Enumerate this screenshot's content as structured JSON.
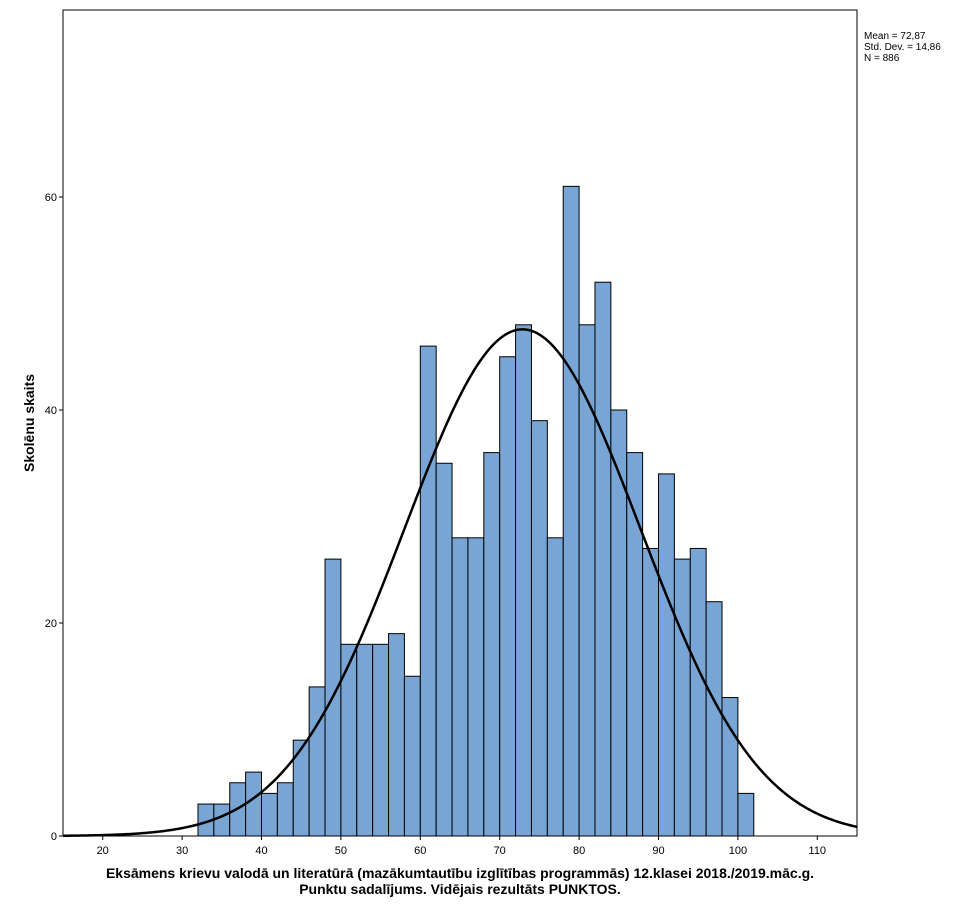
{
  "chart_data": {
    "type": "bar",
    "subtype": "histogram",
    "xlabel_line1": "Eksāmens krievu valodā un literatūrā (mazākumtautību izglītības programmās) 12.klasei 2018./2019.māc.g.",
    "xlabel_line2": "Punktu sadalījums. Vidējais rezultāts PUNKTOS.",
    "ylabel": "Skolēnu skaits",
    "xlim": [
      15,
      115
    ],
    "ylim": [
      0,
      78
    ],
    "xticks": [
      20,
      30,
      40,
      50,
      60,
      70,
      80,
      90,
      100,
      110
    ],
    "yticks": [
      0,
      20,
      40,
      60
    ],
    "bin_width": 2,
    "bin_starts": [
      32,
      34,
      36,
      38,
      40,
      42,
      44,
      46,
      48,
      50,
      52,
      54,
      56,
      58,
      60,
      62,
      64,
      66,
      68,
      70,
      72,
      74,
      76,
      78,
      80,
      82,
      84,
      86,
      88,
      90,
      92,
      94,
      96,
      98,
      100
    ],
    "counts": [
      3,
      3,
      5,
      6,
      4,
      5,
      9,
      14,
      26,
      18,
      18,
      18,
      19,
      15,
      46,
      35,
      28,
      28,
      36,
      45,
      48,
      39,
      28,
      61,
      48,
      52,
      40,
      36,
      27,
      34,
      26,
      27,
      22,
      13,
      4
    ],
    "bar_color": "#79a5d5",
    "bar_edge_color": "#000000",
    "normal_curve": {
      "mean": 72.87,
      "std": 14.86,
      "n": 886,
      "color": "#000000"
    },
    "stats_box": {
      "mean_label": "Mean = 72,87",
      "std_label": "Std. Dev. = 14,86",
      "n_label": "N = 886"
    }
  }
}
